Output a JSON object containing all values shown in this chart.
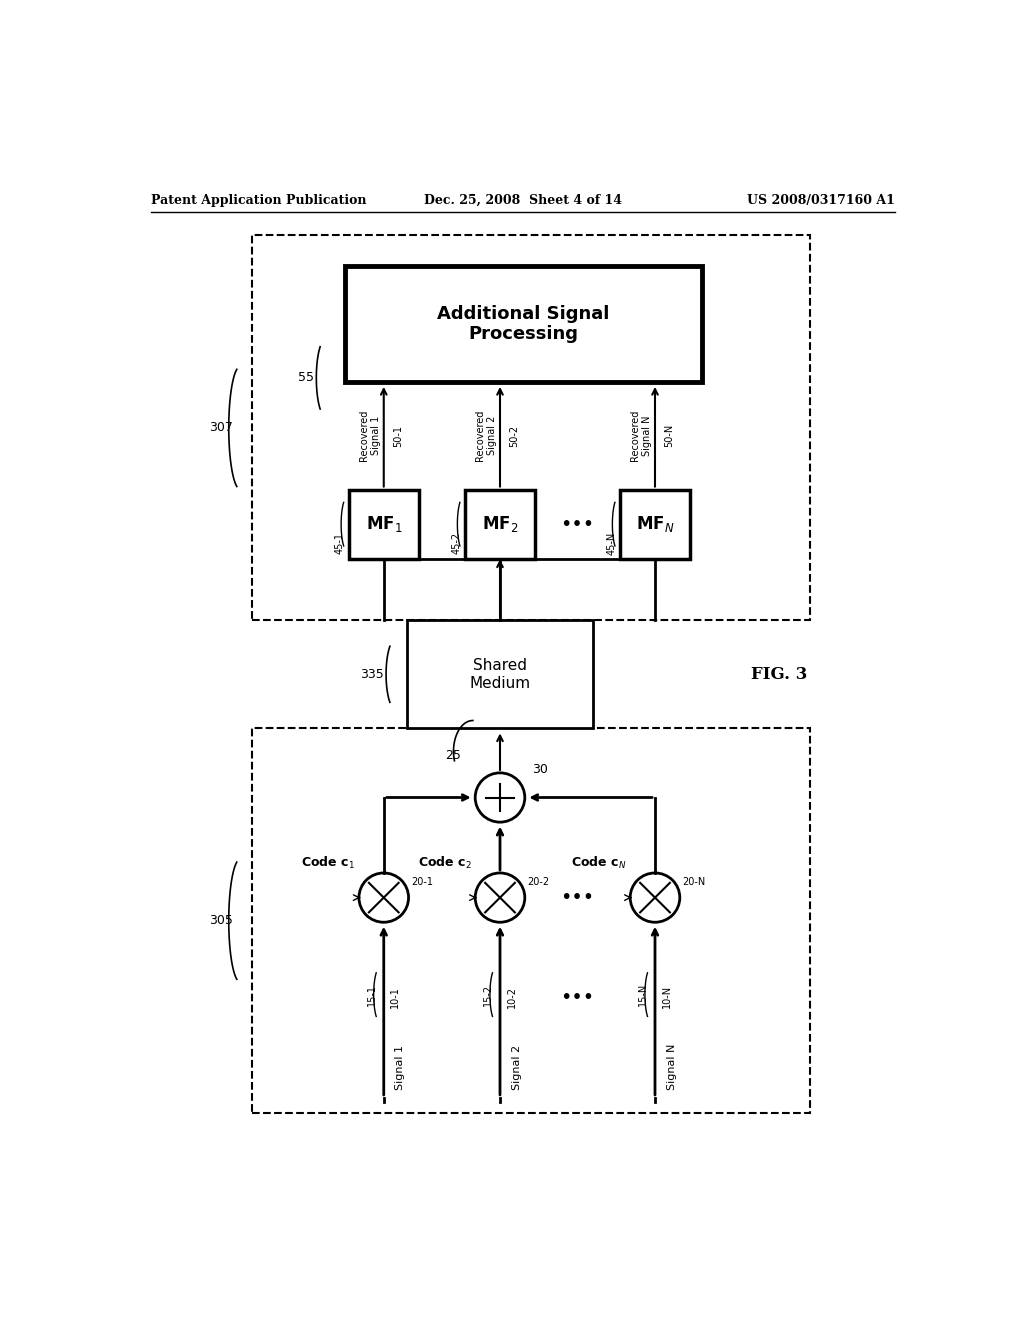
{
  "header_left": "Patent Application Publication",
  "header_mid": "Dec. 25, 2008  Sheet 4 of 14",
  "header_right": "US 2008/0317160 A1",
  "fig_label": "FIG. 3",
  "bg_color": "#ffffff"
}
